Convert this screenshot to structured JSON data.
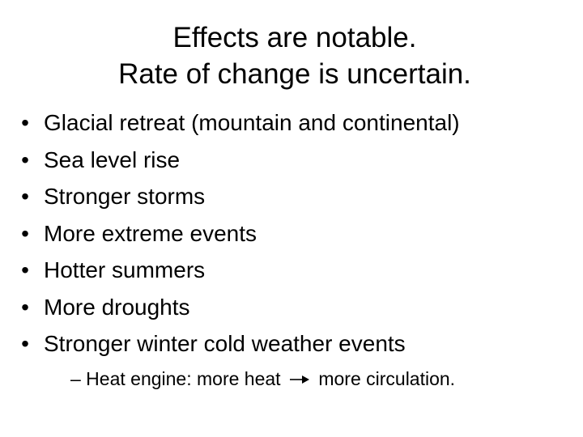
{
  "title": {
    "line1": "Effects are notable.",
    "line2": "Rate of change is uncertain."
  },
  "bullet_glyph": "•",
  "bullets": [
    "Glacial retreat (mountain and continental)",
    "Sea level rise",
    "Stronger storms",
    "More extreme events",
    "Hotter summers",
    "More droughts",
    "Stronger winter cold weather events"
  ],
  "sub_bullet": {
    "prefix": "– Heat engine: more heat",
    "icon": "right-arrow-icon",
    "suffix": "more circulation."
  }
}
